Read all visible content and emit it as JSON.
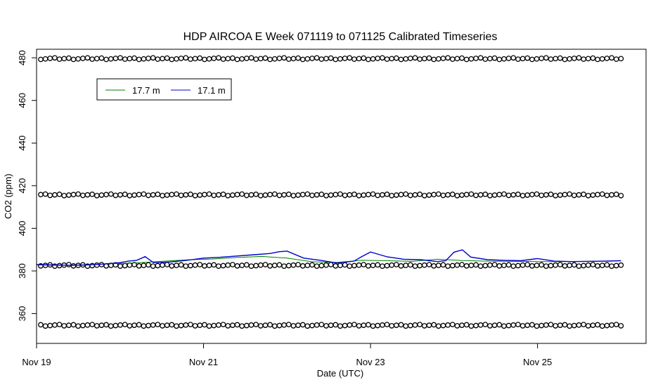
{
  "chart_data": {
    "type": "line",
    "title": "HDP AIRCOA E  Week 071119 to 071125  Calibrated Timeseries",
    "xlabel": "Date (UTC)",
    "ylabel": "CO2 (ppm)",
    "x_ticks": [
      {
        "day": 0,
        "label": "Nov 19"
      },
      {
        "day": 2,
        "label": "Nov 21"
      },
      {
        "day": 4,
        "label": "Nov 23"
      },
      {
        "day": 6,
        "label": "Nov 25"
      }
    ],
    "y_ticks": [
      360,
      380,
      400,
      420,
      440,
      460,
      480
    ],
    "xlim": [
      0,
      7.3
    ],
    "ylim": [
      346,
      484
    ],
    "legend": {
      "placement": "top-left",
      "entries": [
        {
          "label": "17.7 m",
          "color": "#008000"
        },
        {
          "label": "17.1 m",
          "color": "#0000cc"
        }
      ]
    },
    "calibration_levels": [
      479.6,
      415.7,
      382.6,
      354.5
    ],
    "calibration_time_range": [
      0.05,
      7.0
    ],
    "series": [
      {
        "name": "17.7 m",
        "color": "#008000",
        "x": [
          0.0,
          0.3,
          0.6,
          0.9,
          1.2,
          1.5,
          1.8,
          2.1,
          2.4,
          2.7,
          3.0,
          3.3,
          3.6,
          3.9,
          4.2,
          4.5,
          4.8,
          5.1,
          5.4,
          5.7,
          6.0,
          6.3,
          6.6,
          6.9
        ],
        "y": [
          382.8,
          382.6,
          382.9,
          383.4,
          383.8,
          384.5,
          385.2,
          385.6,
          386.3,
          386.8,
          386.0,
          384.3,
          384.0,
          385.0,
          384.8,
          384.5,
          385.5,
          384.9,
          384.6,
          384.5,
          384.4,
          384.4,
          384.5,
          384.6
        ]
      },
      {
        "name": "17.1 m",
        "color": "#0000cc",
        "x": [
          0.0,
          0.2,
          0.4,
          0.6,
          0.8,
          1.0,
          1.1,
          1.2,
          1.3,
          1.4,
          1.6,
          1.8,
          2.0,
          2.2,
          2.4,
          2.6,
          2.8,
          2.9,
          3.0,
          3.2,
          3.4,
          3.6,
          3.8,
          3.9,
          4.0,
          4.2,
          4.4,
          4.6,
          4.8,
          4.9,
          5.0,
          5.1,
          5.2,
          5.4,
          5.6,
          5.8,
          6.0,
          6.2,
          6.4,
          6.6,
          6.8,
          7.0
        ],
        "y": [
          383.0,
          382.8,
          382.6,
          382.8,
          383.2,
          383.9,
          384.6,
          385.0,
          386.7,
          383.9,
          384.2,
          385.0,
          386.0,
          386.4,
          387.0,
          387.6,
          388.2,
          389.0,
          389.3,
          386.0,
          385.0,
          383.7,
          384.6,
          386.8,
          388.9,
          386.6,
          385.5,
          385.3,
          384.4,
          384.8,
          388.8,
          389.9,
          386.5,
          385.3,
          385.0,
          384.8,
          385.8,
          384.6,
          384.4,
          384.5,
          384.6,
          384.8
        ]
      }
    ]
  }
}
